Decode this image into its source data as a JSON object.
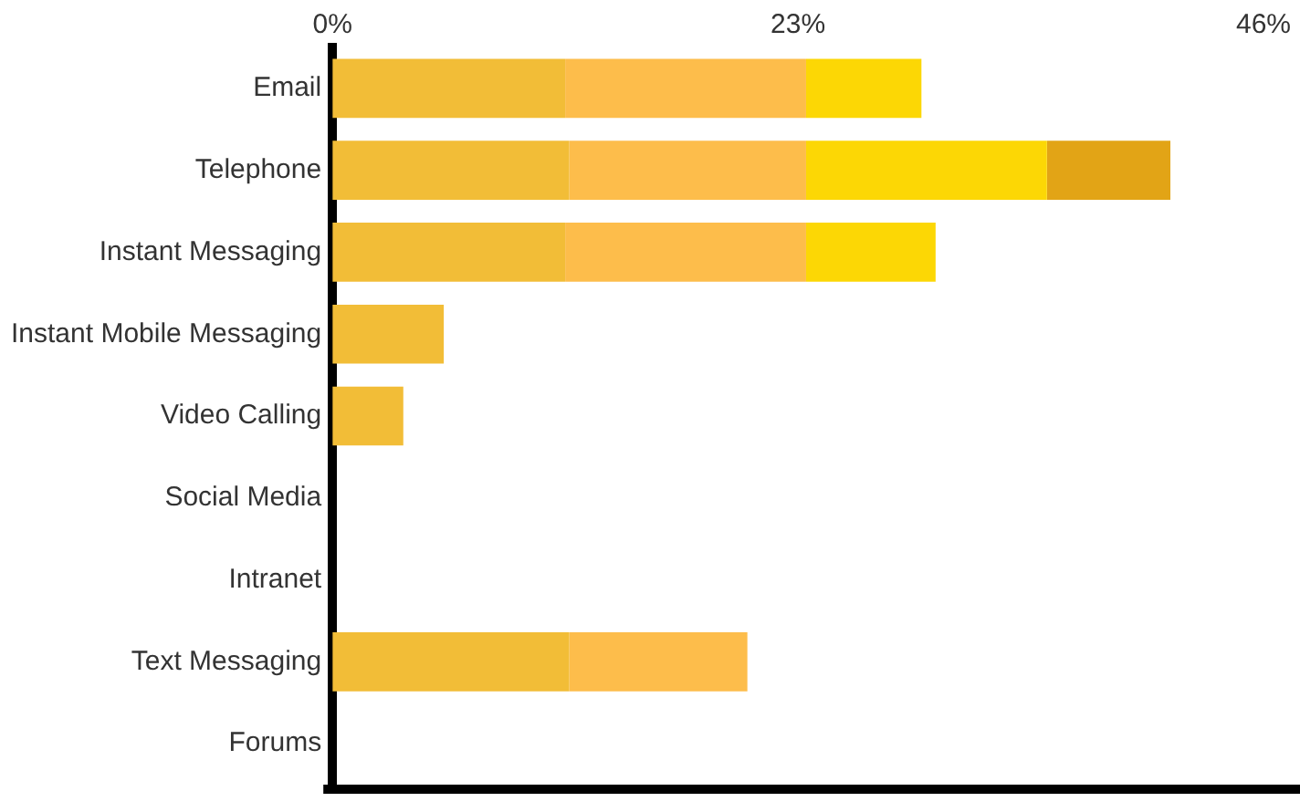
{
  "chart_data": {
    "type": "bar",
    "orientation": "horizontal",
    "stacked": true,
    "categories": [
      "Email",
      "Telephone",
      "Instant Messaging",
      "Instant Mobile Messaging",
      "Video Calling",
      "Social Media",
      "Intranet",
      "Text Messaging",
      "Forums"
    ],
    "series": [
      {
        "color": "#f2bd37",
        "values": [
          11.5,
          11.7,
          11.5,
          5.5,
          3.5,
          null,
          null,
          11.7,
          null
        ]
      },
      {
        "color": "#fdbd4b",
        "values": [
          11.9,
          11.7,
          11.9,
          null,
          null,
          null,
          null,
          8.8,
          null
        ]
      },
      {
        "color": "#fcd705",
        "values": [
          5.7,
          11.9,
          6.4,
          null,
          null,
          null,
          null,
          null,
          null
        ]
      },
      {
        "color": "#e2a416",
        "values": [
          null,
          6.1,
          null,
          null,
          null,
          null,
          null,
          null,
          null
        ]
      }
    ],
    "xlim": [
      0,
      46
    ],
    "xticks": [
      {
        "value": 0,
        "label": "0%"
      },
      {
        "value": 23,
        "label": "23%"
      },
      {
        "value": 46,
        "label": "46%"
      }
    ],
    "grid": false,
    "legend": false
  }
}
